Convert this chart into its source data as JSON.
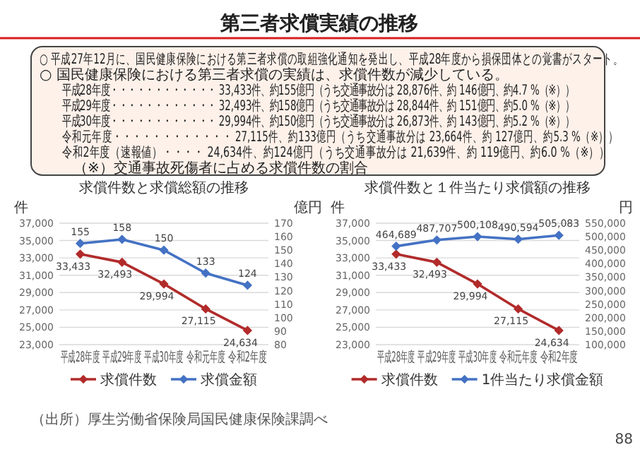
{
  "chart_data": [
    {
      "type": "other",
      "title": "第三者求償実績の推移",
      "annotations": [
        "○ 平成27年12月に、国民健康保険における第三者求償の取組強化通知を発出し、平成28年度から損保団体との覚書がスタート。",
        "○ 国民健康保険における第三者求償の実績は、求償件数が減少している。",
        "平成28年度・・・・・・・・・・・・ 33,433件、約155億円（うち交通事故分は 28,876件、約 146億円、約4.7 %（※））",
        "平成29年度・・・・・・・・・・・・ 32,493件、約158億円（うち交通事故分は 28,844件、約 151億円、約5.0 %（※））",
        "平成30年度・・・・・・・・・・・・ 29,994件、約150億円（うち交通事故分は 26,873件、約 143億円、約5.2 %（※））",
        "令和元年度・・・・・・・・・・・・ 27,115件、約133億円（うち交通事故分は 23,664件、約 127億円、約5.3 %（※））",
        "令和2年度（速報値）・・・・ 24,634件、約124億円（うち交通事故分は 21,639件、約 119億円、約6.0 %（※））",
        "（※）交通事故死傷者に占める求償件数の割合"
      ]
    },
    {
      "type": "line",
      "title": "求償件数と求償総額の推移",
      "ylabel": "件",
      "y2label": "億円",
      "categories": [
        "平成28年度",
        "平成29年度",
        "平成30年度",
        "令和元年度",
        "令和2年度"
      ],
      "series": [
        {
          "name": "求償件数",
          "color": "#b22b2b",
          "values": [
            33433,
            32493,
            29994,
            27115,
            24634
          ],
          "value_labels": [
            "33,433",
            "32,493",
            "29,994",
            "27,115",
            "24,634"
          ]
        },
        {
          "name": "求償金額",
          "color": "#4472c4",
          "values": [
            155,
            158,
            150,
            133,
            124
          ],
          "value_labels": [
            "155",
            "158",
            "150",
            "133",
            "124"
          ],
          "axis": "y2"
        }
      ],
      "ylim": [
        23000,
        37000
      ],
      "yticks": [
        {
          "value": 23000,
          "label": "23,000"
        },
        {
          "value": 25000,
          "label": "25,000"
        },
        {
          "value": 27000,
          "label": "27,000"
        },
        {
          "value": 29000,
          "label": "29,000"
        },
        {
          "value": 31000,
          "label": "31,000"
        },
        {
          "value": 33000,
          "label": "33,000"
        },
        {
          "value": 35000,
          "label": "35,000"
        },
        {
          "value": 37000,
          "label": "37,000"
        }
      ],
      "y2lim": [
        80,
        170
      ],
      "y2ticks": [
        80,
        90,
        100,
        110,
        120,
        130,
        140,
        150,
        160,
        170
      ],
      "grid": "y",
      "legend": "bottom",
      "marker": "diamond"
    },
    {
      "type": "line",
      "title": "求償件数と１件当たり求償額の推移",
      "ylabel": "件",
      "y2label": "円",
      "categories": [
        "平成28年度",
        "平成29年度",
        "平成30年度",
        "令和元年度",
        "令和2年度"
      ],
      "series": [
        {
          "name": "求償件数",
          "color": "#b22b2b",
          "values": [
            33433,
            32493,
            29994,
            27115,
            24634
          ],
          "value_labels": [
            "33,433",
            "32,493",
            "29,994",
            "27,115",
            "24,634"
          ]
        },
        {
          "name": "1件当たり求償金額",
          "color": "#4472c4",
          "values": [
            464689,
            487707,
            500108,
            490594,
            505083
          ],
          "value_labels": [
            "464,689",
            "487,707",
            "500,108",
            "490,594",
            "505,083"
          ],
          "axis": "y2"
        }
      ],
      "ylim": [
        23000,
        37000
      ],
      "yticks": [
        {
          "value": 23000,
          "label": "23,000"
        },
        {
          "value": 25000,
          "label": "25,000"
        },
        {
          "value": 27000,
          "label": "27,000"
        },
        {
          "value": 29000,
          "label": "29,000"
        },
        {
          "value": 31000,
          "label": "31,000"
        },
        {
          "value": 33000,
          "label": "33,000"
        },
        {
          "value": 35000,
          "label": "35,000"
        },
        {
          "value": 37000,
          "label": "37,000"
        }
      ],
      "y2lim": [
        100000,
        550000
      ],
      "y2ticks": [
        {
          "value": 100000,
          "label": "100,000"
        },
        {
          "value": 150000,
          "label": "150,000"
        },
        {
          "value": 200000,
          "label": "200,000"
        },
        {
          "value": 250000,
          "label": "250,000"
        },
        {
          "value": 300000,
          "label": "300,000"
        },
        {
          "value": 350000,
          "label": "350,000"
        },
        {
          "value": 400000,
          "label": "400,000"
        },
        {
          "value": 450000,
          "label": "450,000"
        },
        {
          "value": 500000,
          "label": "500,000"
        },
        {
          "value": 550000,
          "label": "550,000"
        }
      ],
      "grid": "y",
      "legend": "bottom",
      "marker": "diamond"
    },
    {
      "type": "other",
      "annotations": [
        "（出所）厚生労働省保険局国民健康保険課調べ",
        "88"
      ]
    }
  ]
}
